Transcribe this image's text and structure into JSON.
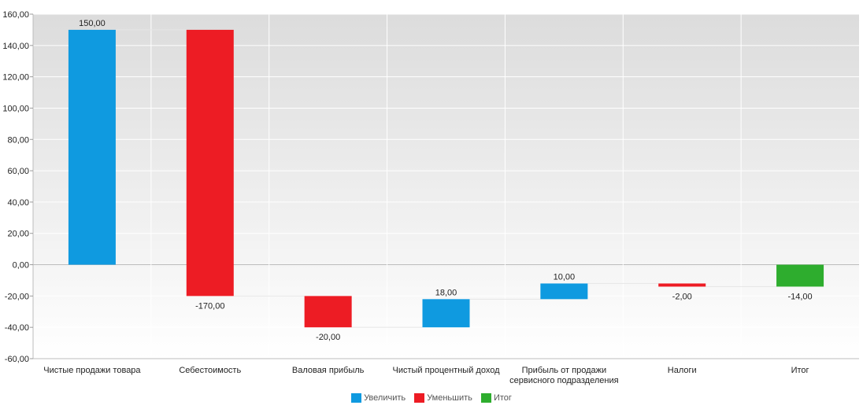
{
  "chart_data": {
    "type": "waterfall",
    "categories": [
      [
        "Чистые продажи товара"
      ],
      [
        "Себестоимость"
      ],
      [
        "Валовая прибыль"
      ],
      [
        "Чистый процентный доход"
      ],
      [
        "Прибыль от продажи",
        "сервисного подразделения"
      ],
      [
        "Налоги"
      ],
      [
        "Итог"
      ]
    ],
    "values": [
      150,
      -170,
      -20,
      18,
      10,
      -2,
      -14
    ],
    "value_labels": [
      "150,00",
      "-170,00",
      "-20,00",
      "18,00",
      "10,00",
      "-2,00",
      "-14,00"
    ],
    "bar_kind": [
      "increase",
      "decrease",
      "decrease",
      "increase",
      "increase",
      "decrease",
      "total"
    ],
    "ylim": [
      -60,
      160
    ],
    "yticks": [
      160,
      140,
      120,
      100,
      80,
      60,
      40,
      20,
      0,
      -20,
      -40,
      -60
    ],
    "ytick_labels": [
      "160,00",
      "140,00",
      "120,00",
      "100,00",
      "80,00",
      "60,00",
      "40,00",
      "20,00",
      "0,00",
      "-20,00",
      "-40,00",
      "-60,00"
    ],
    "grid": true,
    "legend_position": "bottom-center",
    "legend": [
      {
        "key": "increase",
        "label": "Увеличить",
        "color": "#0f9ae0"
      },
      {
        "key": "decrease",
        "label": "Уменьшить",
        "color": "#ed1c24"
      },
      {
        "key": "total",
        "label": "Итог",
        "color": "#2ead2e"
      }
    ]
  }
}
